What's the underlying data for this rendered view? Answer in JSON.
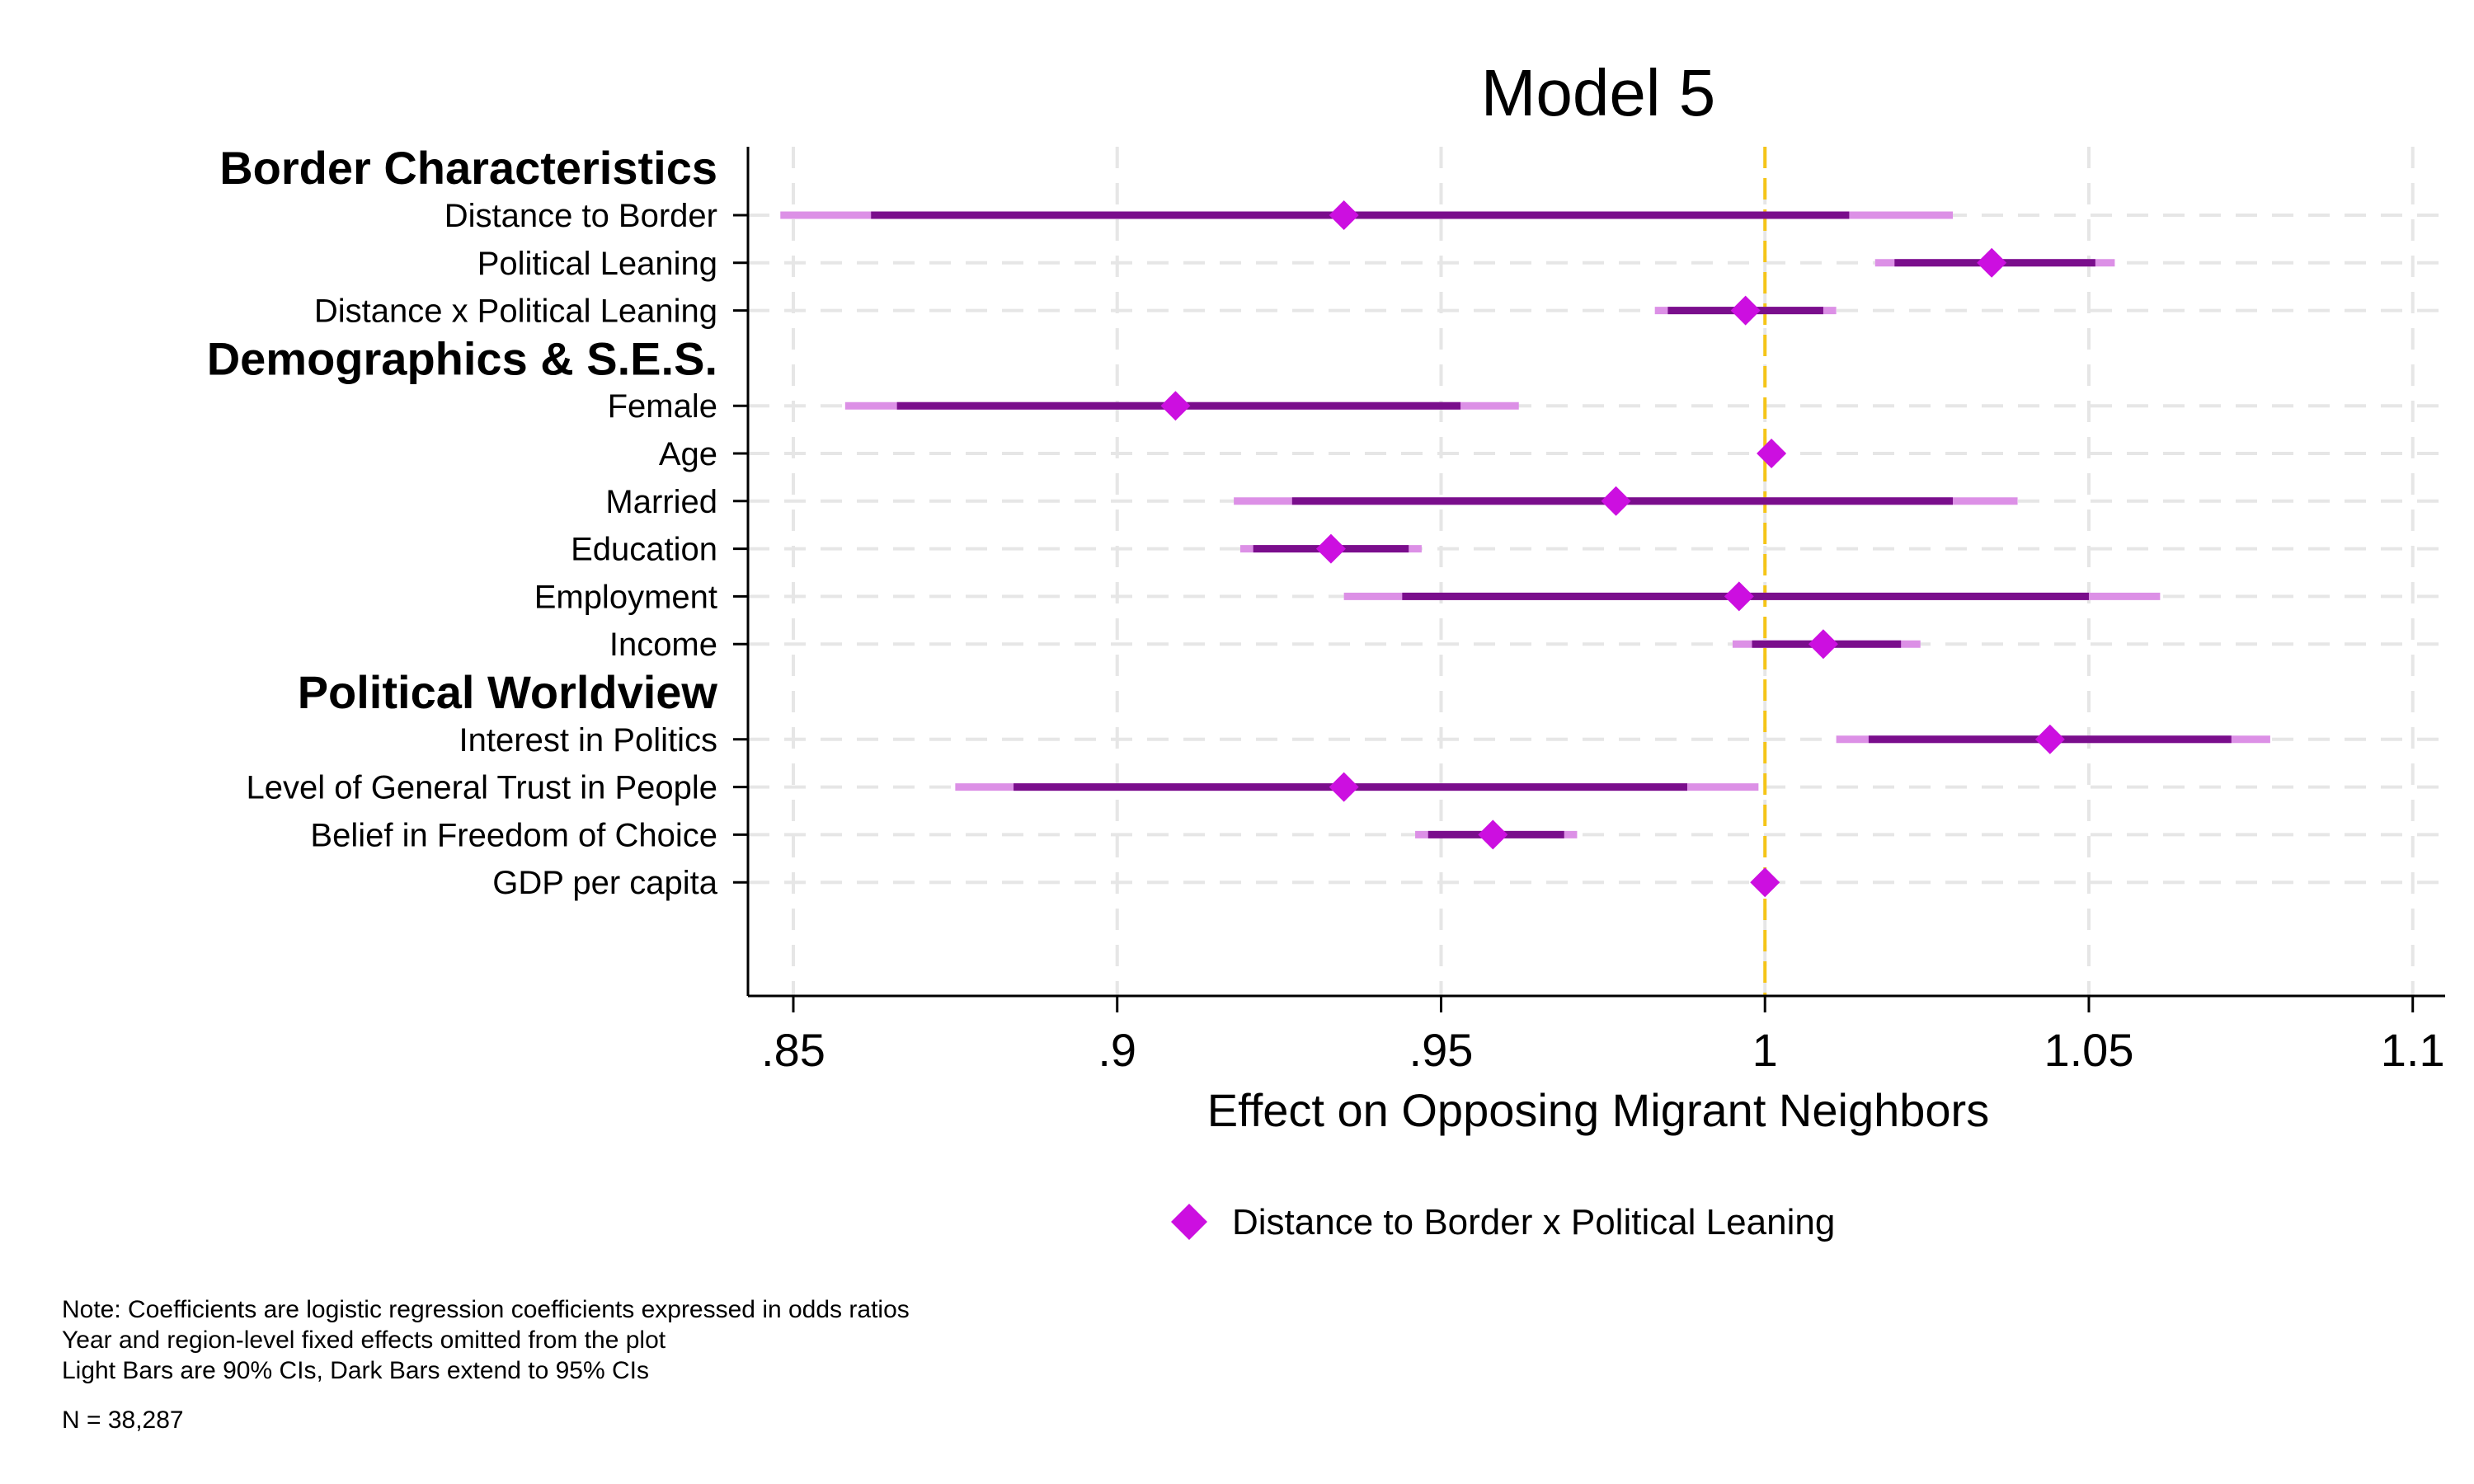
{
  "chart_data": {
    "type": "coefficient-plot",
    "title": "Model 5",
    "xlabel": "Effect on Opposing Migrant Neighbors",
    "xlim": [
      0.843,
      1.105
    ],
    "x_ticks": [
      {
        "value": 0.85,
        "label": ".85"
      },
      {
        "value": 0.9,
        "label": ".9"
      },
      {
        "value": 0.95,
        "label": ".95"
      },
      {
        "value": 1.0,
        "label": "1"
      },
      {
        "value": 1.05,
        "label": "1.05"
      },
      {
        "value": 1.1,
        "label": "1.1"
      }
    ],
    "reference_line": 1.0,
    "grid": true,
    "legend_position": "bottom",
    "series": [
      {
        "name": "Distance to Border x Political Leaning"
      }
    ],
    "colors": {
      "marker": "#cc0fe0",
      "ci95": "#7a0e8c",
      "ci90": "#dc90e6",
      "reference": "#f5c518",
      "grid": "#e6e6e6"
    },
    "groups": [
      {
        "label": "Border Characteristics",
        "rows": [
          {
            "label": "Distance to Border",
            "estimate": 0.935,
            "ci95": [
              0.862,
              1.013
            ],
            "ci_outer": [
              0.848,
              1.029
            ]
          },
          {
            "label": "Political Leaning",
            "estimate": 1.035,
            "ci95": [
              1.02,
              1.051
            ],
            "ci_outer": [
              1.017,
              1.054
            ]
          },
          {
            "label": "Distance x Political Leaning",
            "estimate": 0.997,
            "ci95": [
              0.985,
              1.009
            ],
            "ci_outer": [
              0.983,
              1.011
            ]
          }
        ]
      },
      {
        "label": "Demographics & S.E.S.",
        "rows": [
          {
            "label": "Female",
            "estimate": 0.909,
            "ci95": [
              0.866,
              0.953
            ],
            "ci_outer": [
              0.858,
              0.962
            ]
          },
          {
            "label": "Age",
            "estimate": 1.001,
            "ci95": [
              1.001,
              1.001
            ],
            "ci_outer": [
              1.001,
              1.001
            ]
          },
          {
            "label": "Married",
            "estimate": 0.977,
            "ci95": [
              0.927,
              1.029
            ],
            "ci_outer": [
              0.918,
              1.039
            ]
          },
          {
            "label": "Education",
            "estimate": 0.933,
            "ci95": [
              0.921,
              0.945
            ],
            "ci_outer": [
              0.919,
              0.947
            ]
          },
          {
            "label": "Employment",
            "estimate": 0.996,
            "ci95": [
              0.944,
              1.05
            ],
            "ci_outer": [
              0.935,
              1.061
            ]
          },
          {
            "label": "Income",
            "estimate": 1.009,
            "ci95": [
              0.998,
              1.021
            ],
            "ci_outer": [
              0.995,
              1.024
            ]
          }
        ]
      },
      {
        "label": "Political Worldview",
        "rows": [
          {
            "label": "Interest in Politics",
            "estimate": 1.044,
            "ci95": [
              1.016,
              1.072
            ],
            "ci_outer": [
              1.011,
              1.078
            ]
          },
          {
            "label": "Level of General Trust in People",
            "estimate": 0.935,
            "ci95": [
              0.884,
              0.988
            ],
            "ci_outer": [
              0.875,
              0.999
            ]
          },
          {
            "label": "Belief in Freedom of Choice",
            "estimate": 0.958,
            "ci95": [
              0.948,
              0.969
            ],
            "ci_outer": [
              0.946,
              0.971
            ]
          },
          {
            "label": "GDP per capita",
            "estimate": 1.0,
            "ci95": [
              1.0,
              1.0
            ],
            "ci_outer": [
              1.0,
              1.0
            ]
          }
        ]
      }
    ]
  },
  "notes": [
    "Note: Coefficients are logistic regression coefficients expressed in odds ratios",
    "Year and region-level fixed effects omitted from the plot",
    "Light Bars are 90% CIs, Dark Bars extend to 95% CIs",
    "N = 38,287"
  ]
}
